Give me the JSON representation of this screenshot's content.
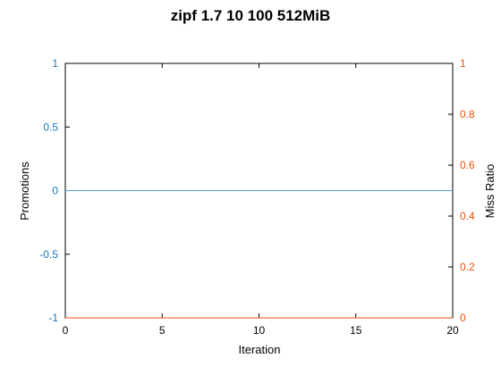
{
  "chart_data": {
    "type": "line",
    "title": "zipf 1.7 10 100 512MiB",
    "xlabel": "Iteration",
    "ylabel_left": "Promotions",
    "ylabel_right": "Miss Ratio",
    "xlim": [
      0,
      20
    ],
    "ylim_left": [
      -1,
      1
    ],
    "ylim_right": [
      0,
      1
    ],
    "x_ticks": [
      0,
      5,
      10,
      15,
      20
    ],
    "y_left_ticks": [
      "-1",
      "-0.5",
      "0",
      "0.5",
      "1"
    ],
    "y_right_ticks": [
      "0",
      "0.2",
      "0.4",
      "0.6",
      "0.8",
      "1"
    ],
    "grid": false,
    "colors": {
      "promotions": "#1f77b4",
      "miss_ratio": "#e8520e",
      "promotions_line": "#5aa7d6"
    },
    "series": [
      {
        "axis": "left",
        "x": [
          0,
          20
        ],
        "values": [
          0,
          0
        ]
      },
      {
        "axis": "right",
        "x": [
          0,
          20
        ],
        "values": [
          0,
          0
        ]
      }
    ]
  }
}
